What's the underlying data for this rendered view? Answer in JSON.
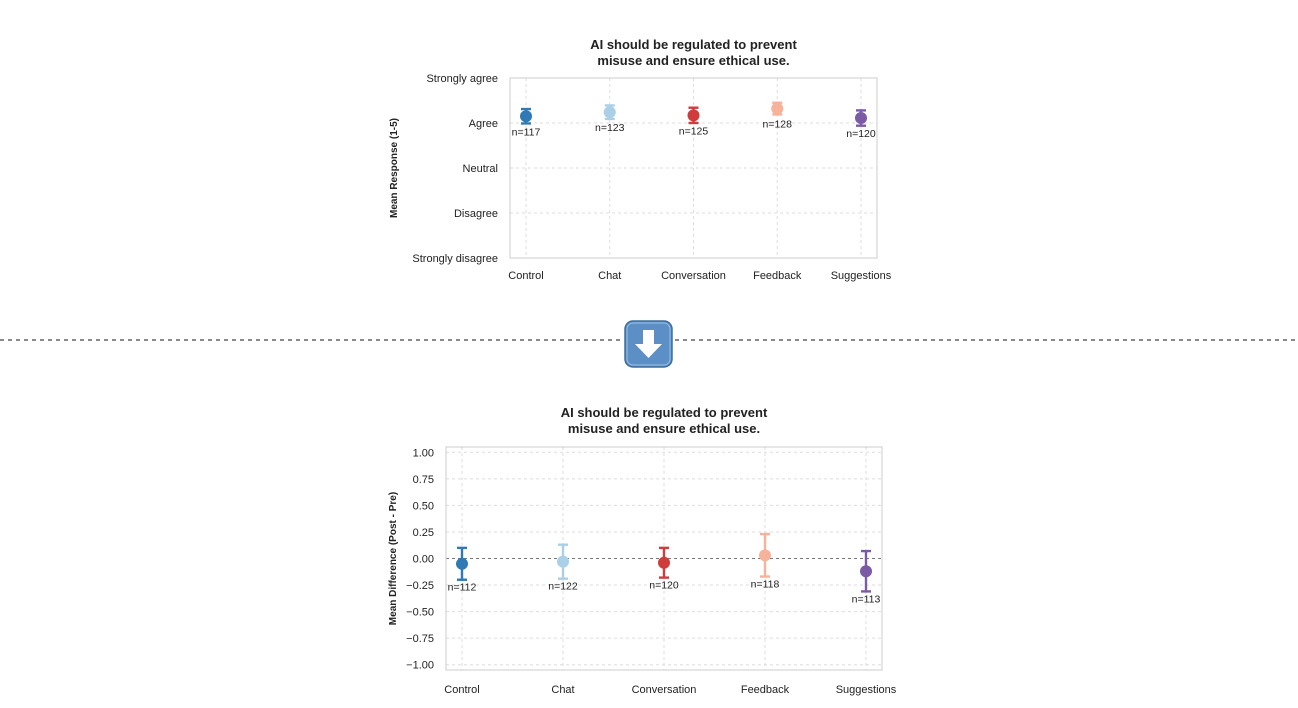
{
  "colors": {
    "Control": "#2f79b5",
    "Chat": "#a9d0e6",
    "Conversation": "#d03b3b",
    "Feedback": "#f6b39a",
    "Suggestions": "#7b5aa6",
    "arrow_bg": "#5b8fc5",
    "grid": "#dddddd",
    "divider": "#444444"
  },
  "icons": {
    "transition": "down-arrow-icon"
  },
  "chart_data": [
    {
      "type": "scatter",
      "variant": "point-errorbar",
      "title": "AI should be regulated to prevent\nmisuse and ensure ethical use.",
      "title_lines": [
        "AI should be regulated to prevent",
        "misuse and ensure ethical use."
      ],
      "xlabel": "",
      "ylabel": "Mean Response (1-5)",
      "ylim": [
        1,
        5
      ],
      "yticks": [
        1,
        2,
        3,
        4,
        5
      ],
      "yticklabels": [
        "Strongly disagree",
        "Disagree",
        "Neutral",
        "Agree",
        "Strongly agree"
      ],
      "grid": true,
      "categories": [
        "Control",
        "Chat",
        "Conversation",
        "Feedback",
        "Suggestions"
      ],
      "means": [
        4.15,
        4.24,
        4.17,
        4.32,
        4.11
      ],
      "err": [
        0.16,
        0.15,
        0.17,
        0.13,
        0.17
      ],
      "n_labels": [
        "n=117",
        "n=123",
        "n=125",
        "n=128",
        "n=120"
      ]
    },
    {
      "type": "scatter",
      "variant": "point-errorbar",
      "title": "AI should be regulated to prevent\nmisuse and ensure ethical use.",
      "title_lines": [
        "AI should be regulated to prevent",
        "misuse and ensure ethical use."
      ],
      "xlabel": "",
      "ylabel": "Mean Difference (Post - Pre)",
      "ylim": [
        -1.05,
        1.05
      ],
      "yticks": [
        1.0,
        0.75,
        0.5,
        0.25,
        0.0,
        -0.25,
        -0.5,
        -0.75,
        -1.0
      ],
      "yticklabels": [
        "1.00",
        "0.75",
        "0.50",
        "0.25",
        "0.00",
        "−0.25",
        "−0.50",
        "−0.75",
        "−1.00"
      ],
      "grid": true,
      "zero_line": true,
      "categories": [
        "Control",
        "Chat",
        "Conversation",
        "Feedback",
        "Suggestions"
      ],
      "means": [
        -0.05,
        -0.03,
        -0.04,
        0.03,
        -0.12
      ],
      "err": [
        0.15,
        0.16,
        0.14,
        0.2,
        0.19
      ],
      "n_labels": [
        "n=112",
        "n=122",
        "n=120",
        "n=118",
        "n=113"
      ]
    }
  ]
}
